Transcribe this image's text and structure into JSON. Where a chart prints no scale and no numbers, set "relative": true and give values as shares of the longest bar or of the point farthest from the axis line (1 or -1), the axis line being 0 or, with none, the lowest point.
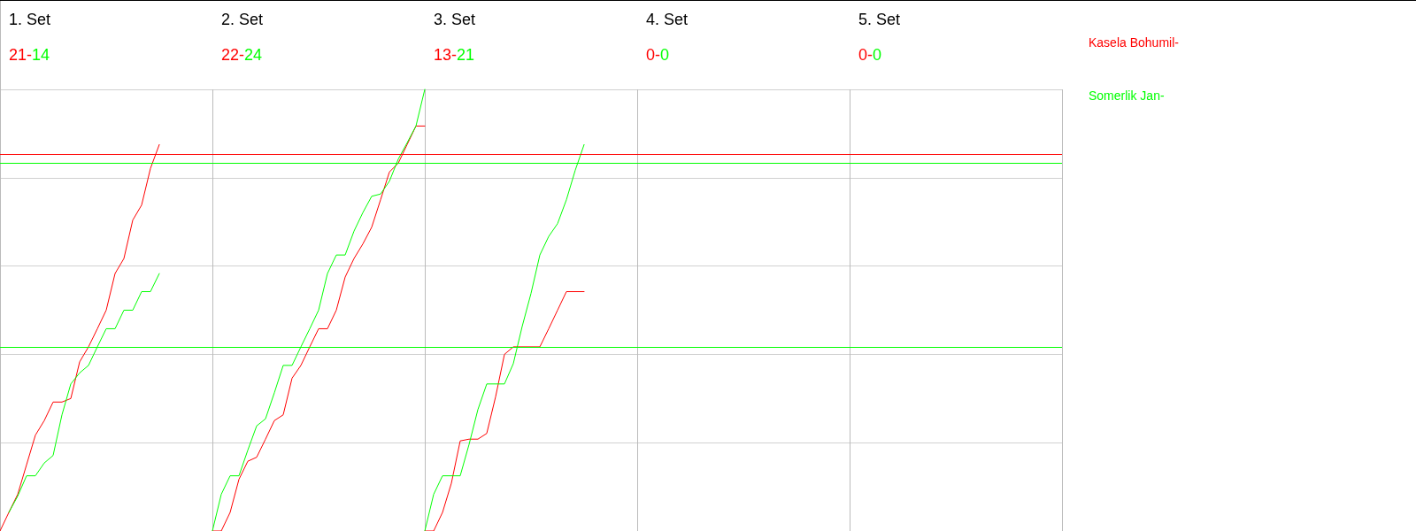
{
  "chart_data": {
    "type": "line",
    "relative": true,
    "annotations": [
      "1. Set",
      "21-",
      "14",
      "2. Set",
      "22-",
      "24",
      "3. Set",
      "13-",
      "21",
      "4. Set",
      "0-",
      "0",
      "5. Set",
      "0-",
      "0"
    ],
    "categories": [
      null,
      null,
      null,
      null,
      null,
      null,
      null,
      null,
      null,
      null,
      null,
      null,
      null,
      null,
      null,
      null,
      null,
      null,
      null,
      null,
      null,
      null,
      null,
      null,
      null,
      null,
      null,
      null,
      null,
      null,
      null,
      null,
      null,
      null,
      null,
      null,
      null,
      null,
      null,
      null,
      null,
      null,
      null,
      null,
      null,
      null,
      null,
      null,
      null,
      null,
      null,
      null,
      null,
      null,
      null,
      null,
      null,
      null,
      null,
      null,
      null,
      null,
      null,
      null,
      null,
      null,
      null,
      null,
      null,
      null,
      null,
      null,
      null,
      null,
      null,
      null,
      null,
      null,
      null,
      null,
      null,
      null,
      null,
      null,
      null,
      null,
      null,
      null,
      null,
      null,
      null,
      null,
      null,
      null,
      null,
      null,
      null,
      null,
      null,
      null,
      null,
      null,
      null,
      null,
      null,
      null,
      null,
      null,
      null,
      null,
      null,
      null,
      null,
      null,
      null,
      null,
      null,
      null,
      null,
      null,
      null
    ],
    "grid": true,
    "legend": "right",
    "marker": "none",
    "line_style": "solid",
    "ref_lines": [
      {
        "axis": "y",
        "value": 0.854,
        "color": "#ff0000"
      },
      {
        "axis": "y",
        "value": 0.833,
        "color": "#00ff00"
      },
      {
        "axis": "y",
        "value": 0.417,
        "color": "#00ff00"
      }
    ],
    "series": [
      {
        "name": "Kasela Bohumil-",
        "color": "#ff0000",
        "values": [
          0,
          0.042,
          0.083,
          0.15,
          0.217,
          0.25,
          0.292,
          0.292,
          0.3,
          0.383,
          0.417,
          0.458,
          0.5,
          0.583,
          0.617,
          0.704,
          0.738,
          0.821,
          0.875,
          null,
          null,
          null,
          null,
          null,
          null,
          null,
          null,
          null,
          null,
          null,
          null,
          null,
          null,
          null,
          null,
          null,
          null,
          null,
          null,
          null,
          null,
          null,
          null,
          null,
          null,
          null,
          null,
          null,
          null,
          null,
          null,
          null,
          null,
          null,
          null,
          null,
          null,
          null,
          null,
          null,
          null,
          null,
          null,
          null,
          null,
          null,
          null,
          null,
          null,
          null,
          null,
          null,
          null,
          null,
          null,
          null,
          null,
          null,
          null,
          null,
          null,
          null,
          null,
          null,
          null,
          null,
          null,
          null,
          null,
          null,
          null,
          null,
          null,
          null,
          null,
          null,
          null,
          null,
          null,
          null,
          null,
          null,
          null,
          null,
          null,
          null,
          null,
          null,
          null,
          null,
          null,
          null,
          null,
          null,
          null,
          null,
          null,
          null,
          null,
          null,
          null
        ]
      },
      {
        "name": "Somerlik Jan-",
        "color": "#00ff00",
        "values": [
          null,
          0.042,
          0.079,
          0.125,
          0.125,
          0.154,
          0.171,
          0.263,
          0.333,
          0.358,
          0.375,
          0.417,
          0.458,
          0.458,
          0.5,
          0.5,
          0.542,
          0.542,
          0.583,
          null,
          null,
          null,
          null,
          null,
          null,
          null,
          null,
          null,
          null,
          null,
          null,
          null,
          null,
          null,
          null,
          null,
          null,
          null,
          null,
          null,
          null,
          null,
          null,
          null,
          null,
          null,
          null,
          null,
          null,
          null,
          null,
          null,
          null,
          null,
          null,
          null,
          null,
          null,
          null,
          null,
          null,
          null,
          null,
          null,
          null,
          null,
          null,
          null,
          null,
          null,
          null,
          null,
          null,
          null,
          null,
          null,
          null,
          null,
          null,
          null,
          null,
          null,
          null,
          null,
          null,
          null,
          null,
          null,
          null,
          null,
          null,
          null,
          null,
          null,
          null,
          null,
          null,
          null,
          null,
          null,
          null,
          null,
          null,
          null,
          null,
          null,
          null,
          null,
          null,
          null,
          null,
          null,
          null,
          null,
          null,
          null,
          null,
          null,
          null,
          null,
          null
        ]
      },
      {
        "color": "#ff0000",
        "values": [
          null,
          null,
          null,
          null,
          null,
          null,
          null,
          null,
          null,
          null,
          null,
          null,
          null,
          null,
          null,
          null,
          null,
          null,
          null,
          null,
          null,
          null,
          null,
          null,
          0,
          0,
          0.042,
          0.117,
          0.158,
          0.167,
          0.208,
          0.25,
          0.263,
          0.346,
          0.375,
          0.417,
          0.458,
          0.458,
          0.5,
          0.575,
          0.617,
          0.65,
          0.688,
          0.75,
          0.813,
          0.833,
          0.875,
          0.917,
          0.917,
          null,
          null,
          null,
          null,
          null,
          null,
          null,
          null,
          null,
          null,
          null,
          null,
          null,
          null,
          null,
          null,
          null,
          null,
          null,
          null,
          null,
          null,
          null,
          null,
          null,
          null,
          null,
          null,
          null,
          null,
          null,
          null,
          null,
          null,
          null,
          null,
          null,
          null,
          null,
          null,
          null,
          null,
          null,
          null,
          null,
          null,
          null,
          null,
          null,
          null,
          null,
          null,
          null,
          null,
          null,
          null,
          null,
          null,
          null,
          null,
          null,
          null,
          null,
          null,
          null,
          null,
          null,
          null,
          null,
          null,
          null,
          null
        ]
      },
      {
        "color": "#00ff00",
        "values": [
          null,
          null,
          null,
          null,
          null,
          null,
          null,
          null,
          null,
          null,
          null,
          null,
          null,
          null,
          null,
          null,
          null,
          null,
          null,
          null,
          null,
          null,
          null,
          null,
          0,
          0.083,
          0.125,
          0.125,
          0.183,
          0.238,
          0.254,
          0.313,
          0.375,
          0.375,
          0.417,
          0.458,
          0.5,
          0.583,
          0.625,
          0.625,
          0.679,
          0.721,
          0.758,
          0.763,
          0.792,
          0.842,
          0.879,
          0.917,
          1,
          null,
          null,
          null,
          null,
          null,
          null,
          null,
          null,
          null,
          null,
          null,
          null,
          null,
          null,
          null,
          null,
          null,
          null,
          null,
          null,
          null,
          null,
          null,
          null,
          null,
          null,
          null,
          null,
          null,
          null,
          null,
          null,
          null,
          null,
          null,
          null,
          null,
          null,
          null,
          null,
          null,
          null,
          null,
          null,
          null,
          null,
          null,
          null,
          null,
          null,
          null,
          null,
          null,
          null,
          null,
          null,
          null,
          null,
          null,
          null,
          null,
          null,
          null,
          null,
          null,
          null,
          null,
          null,
          null,
          null,
          null,
          null
        ]
      },
      {
        "color": "#ff0000",
        "values": [
          null,
          null,
          null,
          null,
          null,
          null,
          null,
          null,
          null,
          null,
          null,
          null,
          null,
          null,
          null,
          null,
          null,
          null,
          null,
          null,
          null,
          null,
          null,
          null,
          null,
          null,
          null,
          null,
          null,
          null,
          null,
          null,
          null,
          null,
          null,
          null,
          null,
          null,
          null,
          null,
          null,
          null,
          null,
          null,
          null,
          null,
          null,
          null,
          0,
          0,
          0.042,
          0.108,
          0.204,
          0.208,
          0.208,
          0.221,
          0.304,
          0.4,
          0.417,
          0.417,
          0.417,
          0.417,
          0.458,
          0.5,
          0.542,
          0.542,
          0.542,
          null,
          null,
          null,
          null,
          null,
          null,
          null,
          null,
          null,
          null,
          null,
          null,
          null,
          null,
          null,
          null,
          null,
          null,
          null,
          null,
          null,
          null,
          null,
          null,
          null,
          null,
          null,
          null,
          null,
          null,
          null,
          null,
          null,
          null,
          null,
          null,
          null,
          null,
          null,
          null,
          null,
          null,
          null,
          null,
          null,
          null,
          null,
          null,
          null,
          null,
          null,
          null,
          null,
          null
        ]
      },
      {
        "color": "#00ff00",
        "values": [
          null,
          null,
          null,
          null,
          null,
          null,
          null,
          null,
          null,
          null,
          null,
          null,
          null,
          null,
          null,
          null,
          null,
          null,
          null,
          null,
          null,
          null,
          null,
          null,
          null,
          null,
          null,
          null,
          null,
          null,
          null,
          null,
          null,
          null,
          null,
          null,
          null,
          null,
          null,
          null,
          null,
          null,
          null,
          null,
          null,
          null,
          null,
          null,
          0,
          0.083,
          0.125,
          0.125,
          0.125,
          0.196,
          0.275,
          0.333,
          0.333,
          0.333,
          0.379,
          0.463,
          0.538,
          0.625,
          0.667,
          0.696,
          0.75,
          0.817,
          0.875,
          null,
          null,
          null,
          null,
          null,
          null,
          null,
          null,
          null,
          null,
          null,
          null,
          null,
          null,
          null,
          null,
          null,
          null,
          null,
          null,
          null,
          null,
          null,
          null,
          null,
          null,
          null,
          null,
          null,
          null,
          null,
          null,
          null,
          null,
          null,
          null,
          null,
          null,
          null,
          null,
          null,
          null,
          null,
          null,
          null,
          null,
          null,
          null,
          null,
          null,
          null,
          null,
          null,
          null
        ]
      }
    ]
  }
}
